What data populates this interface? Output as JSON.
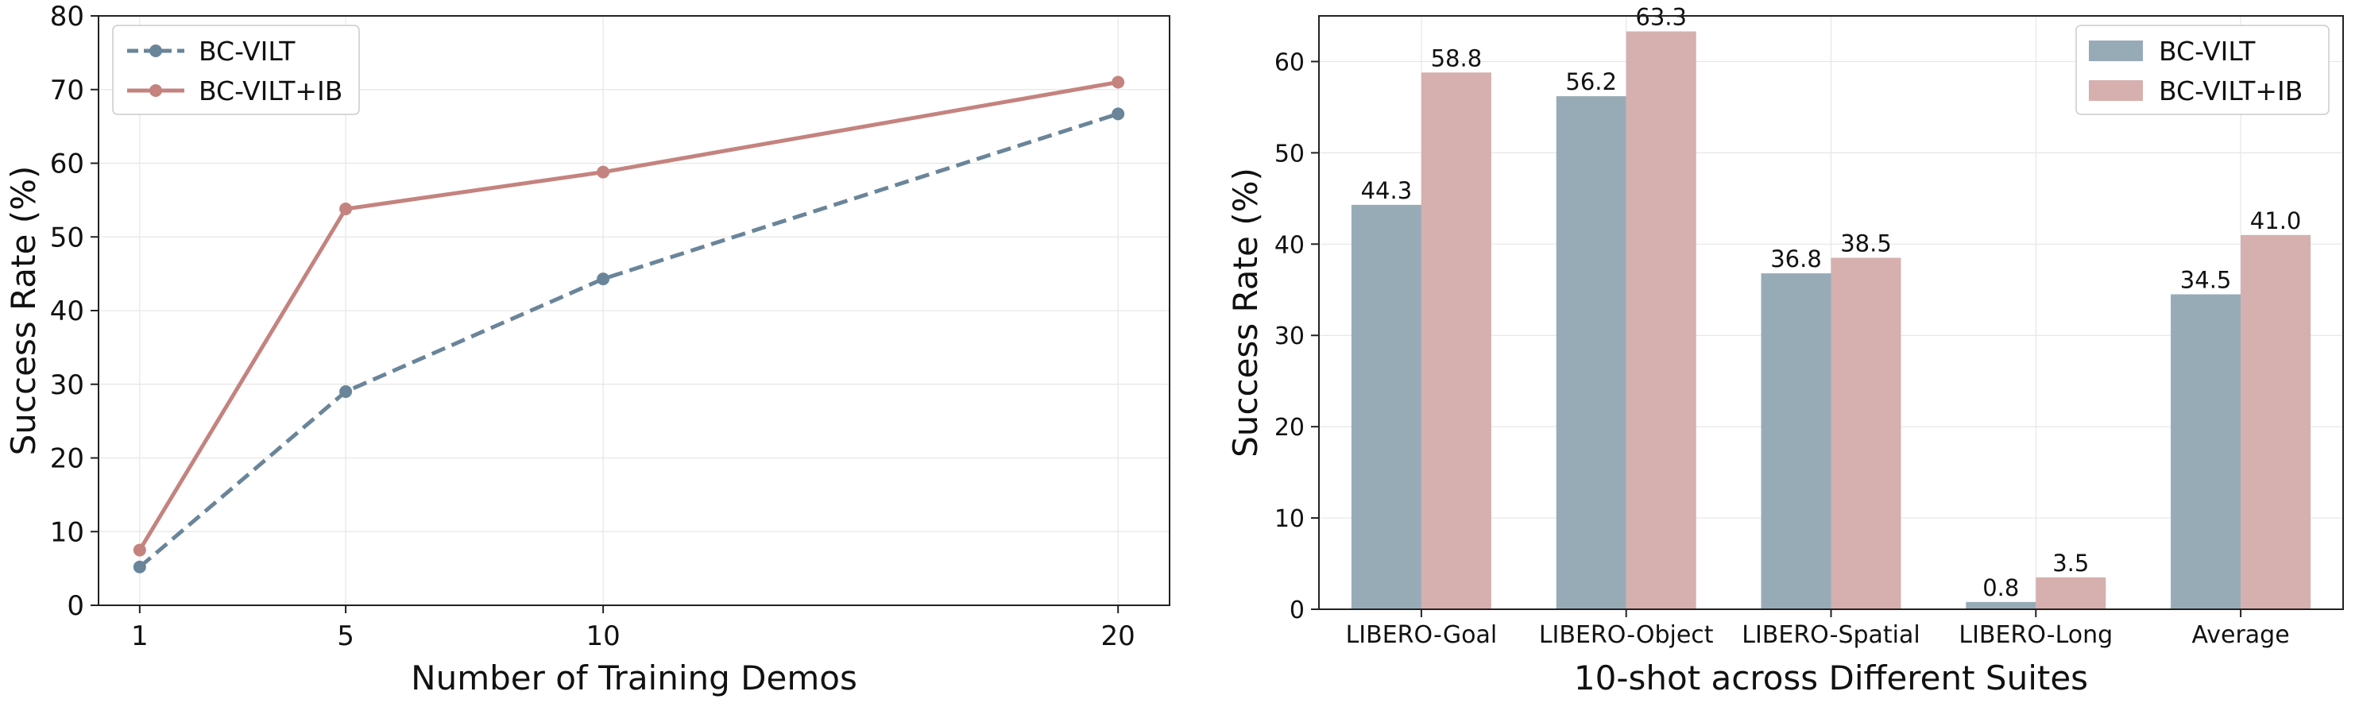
{
  "chart_data": [
    {
      "type": "line",
      "x": [
        1,
        5,
        10,
        20
      ],
      "series": [
        {
          "name": "BC-VILT",
          "values": [
            5.2,
            29.0,
            44.3,
            66.7
          ],
          "color": "#6a8599",
          "dashed": true
        },
        {
          "name": "BC-VILT+IB",
          "values": [
            7.5,
            53.8,
            58.8,
            71.0
          ],
          "color": "#c4837f",
          "dashed": false
        }
      ],
      "xlabel": "Number of Training Demos",
      "ylabel": "Success Rate (%)",
      "ylim": [
        0,
        80
      ],
      "yticks": [
        0,
        10,
        20,
        30,
        40,
        50,
        60,
        70,
        80
      ],
      "xticks": [
        "1",
        "5",
        "10",
        "20"
      ],
      "grid": true,
      "legend": "top-left"
    },
    {
      "type": "bar",
      "categories": [
        "LIBERO-Goal",
        "LIBERO-Object",
        "LIBERO-Spatial",
        "LIBERO-Long",
        "Average"
      ],
      "series": [
        {
          "name": "BC-VILT",
          "values": [
            44.3,
            56.2,
            36.8,
            0.8,
            34.5
          ],
          "labels": [
            "44.3",
            "56.2",
            "36.8",
            "0.8",
            "34.5"
          ],
          "color": "#97abb7"
        },
        {
          "name": "BC-VILT+IB",
          "values": [
            58.8,
            63.3,
            38.5,
            3.5,
            41.0
          ],
          "labels": [
            "58.8",
            "63.3",
            "38.5",
            "3.5",
            "41.0"
          ],
          "color": "#d5b0ae"
        }
      ],
      "xlabel": "10-shot across Different Suites",
      "ylabel": "Success Rate (%)",
      "ylim": [
        0,
        65
      ],
      "yticks": [
        0,
        10,
        20,
        30,
        40,
        50,
        60
      ],
      "grid": true,
      "legend": "top-right"
    }
  ]
}
